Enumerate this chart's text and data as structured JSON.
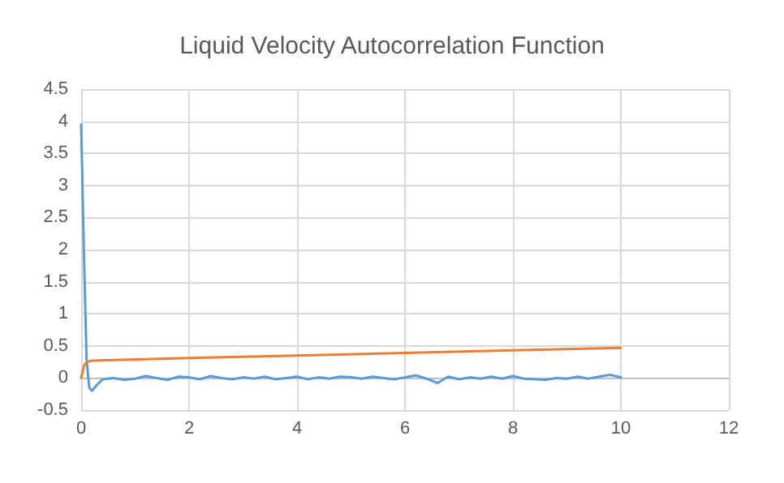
{
  "chart_data": {
    "type": "line",
    "title": "Liquid Velocity Autocorrelation Function",
    "xlim": [
      0,
      12
    ],
    "xticks": [
      0,
      2,
      4,
      6,
      8,
      10,
      12
    ],
    "ylim": [
      -0.5,
      4.5
    ],
    "yticks": [
      -0.5,
      0,
      0.5,
      1,
      1.5,
      2,
      2.5,
      3,
      3.5,
      4,
      4.5
    ],
    "grid": true,
    "marker": "none",
    "line_style": "solid",
    "series": [
      {
        "color": "#5b9bd5",
        "x": [
          0,
          0.05,
          0.1,
          0.15,
          0.2,
          0.3,
          0.4,
          0.6,
          0.8,
          1,
          1.2,
          1.4,
          1.6,
          1.8,
          2,
          2.2,
          2.4,
          2.6,
          2.8,
          3,
          3.2,
          3.4,
          3.6,
          3.8,
          4,
          4.2,
          4.4,
          4.6,
          4.8,
          5,
          5.2,
          5.4,
          5.6,
          5.8,
          6,
          6.2,
          6.4,
          6.6,
          6.8,
          7,
          7.2,
          7.4,
          7.6,
          7.8,
          8,
          8.2,
          8.4,
          8.6,
          8.8,
          9,
          9.2,
          9.4,
          9.6,
          9.8,
          10
        ],
        "values": [
          3.95,
          2,
          0.3,
          -0.15,
          -0.2,
          -0.1,
          -0.02,
          0,
          -0.03,
          -0.01,
          0.03,
          0,
          -0.03,
          0.02,
          0.01,
          -0.02,
          0.03,
          0,
          -0.02,
          0.01,
          -0.01,
          0.02,
          -0.02,
          0,
          0.02,
          -0.02,
          0.01,
          -0.01,
          0.02,
          0.01,
          -0.01,
          0.02,
          0,
          -0.02,
          0.01,
          0.04,
          -0.01,
          -0.08,
          0.02,
          -0.02,
          0.01,
          -0.01,
          0.02,
          -0.01,
          0.03,
          -0.01,
          -0.02,
          -0.03,
          0,
          -0.01,
          0.02,
          -0.01,
          0.02,
          0.05,
          0.01
        ]
      },
      {
        "color": "#ed7d31",
        "x": [
          0,
          0.05,
          0.1,
          0.2,
          2,
          4,
          6,
          8,
          10
        ],
        "values": [
          0,
          0.18,
          0.25,
          0.27,
          0.31,
          0.35,
          0.39,
          0.43,
          0.47
        ]
      }
    ]
  }
}
